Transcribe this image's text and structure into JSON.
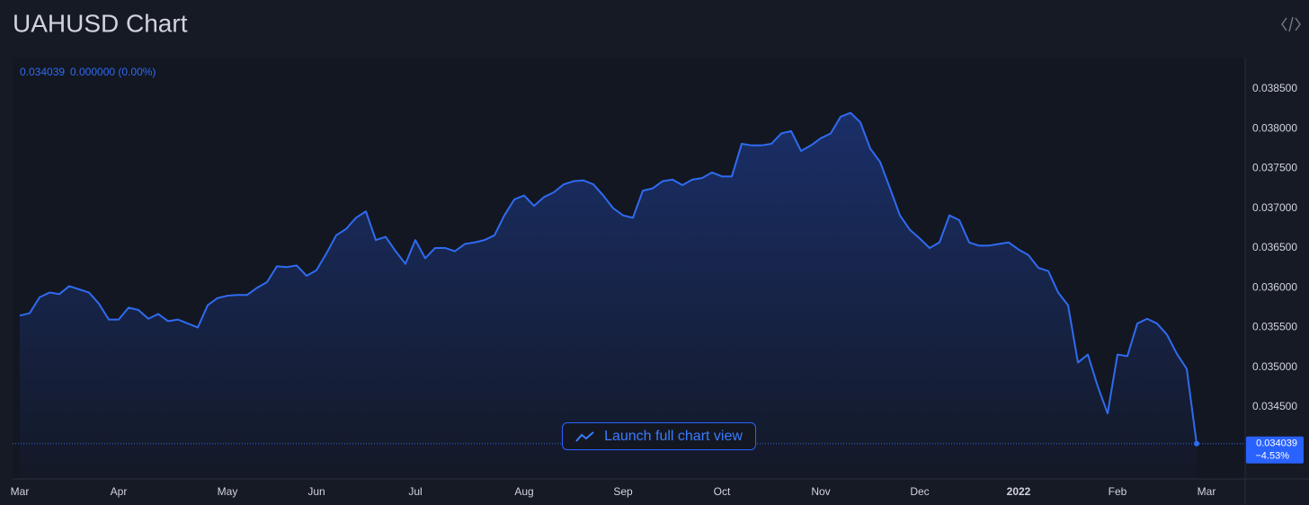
{
  "chart_data": {
    "type": "line",
    "title": "UAHUSD Chart",
    "legend": {
      "change": "0.000000 (0.00%)"
    },
    "price_change": "−4.53%",
    "button": "Launch full chart view",
    "categories": [
      "Mar",
      null,
      null,
      null,
      null,
      null,
      null,
      null,
      null,
      null,
      "Apr",
      null,
      null,
      null,
      null,
      null,
      null,
      null,
      null,
      null,
      null,
      "May",
      null,
      null,
      null,
      null,
      null,
      null,
      null,
      null,
      "Jun",
      null,
      null,
      null,
      null,
      null,
      null,
      null,
      null,
      null,
      "Jul",
      null,
      null,
      null,
      null,
      null,
      null,
      null,
      null,
      null,
      null,
      "Aug",
      null,
      null,
      null,
      null,
      null,
      null,
      null,
      null,
      null,
      "Sep",
      null,
      null,
      null,
      null,
      null,
      null,
      null,
      null,
      null,
      "Oct",
      null,
      null,
      null,
      null,
      null,
      null,
      null,
      null,
      null,
      "Nov",
      null,
      null,
      null,
      null,
      null,
      null,
      null,
      null,
      null,
      "Dec",
      null,
      null,
      null,
      null,
      null,
      null,
      null,
      null,
      null,
      "2022",
      null,
      null,
      null,
      null,
      null,
      null,
      null,
      null,
      null,
      "Feb",
      null,
      null,
      null,
      null,
      null,
      null,
      null,
      null,
      "Mar"
    ],
    "series": [
      {
        "name": "UAHUSD",
        "color": "#2f6bf0",
        "values": [
          0.03565,
          0.03568,
          0.03588,
          0.03594,
          0.03592,
          0.03602,
          0.03598,
          0.03594,
          0.0358,
          0.0356,
          0.0356,
          0.03575,
          0.03572,
          0.03561,
          0.03567,
          0.03558,
          0.0356,
          0.03555,
          0.0355,
          0.03578,
          0.03587,
          0.0359,
          0.03591,
          0.03591,
          0.036,
          0.03607,
          0.03627,
          0.03626,
          0.03628,
          0.03615,
          0.03622,
          0.03643,
          0.03666,
          0.03674,
          0.03688,
          0.03696,
          0.0366,
          0.03664,
          0.03646,
          0.0363,
          0.0366,
          0.03637,
          0.0365,
          0.0365,
          0.03646,
          0.03655,
          0.03657,
          0.0366,
          0.03666,
          0.03691,
          0.03711,
          0.03716,
          0.03703,
          0.03714,
          0.0372,
          0.0373,
          0.03734,
          0.03735,
          0.0373,
          0.03716,
          0.037,
          0.03691,
          0.03688,
          0.03722,
          0.03725,
          0.03734,
          0.03736,
          0.03729,
          0.03736,
          0.03738,
          0.03745,
          0.0374,
          0.0374,
          0.03781,
          0.03779,
          0.03779,
          0.03781,
          0.03794,
          0.03797,
          0.03772,
          0.03779,
          0.03788,
          0.03794,
          0.03815,
          0.0382,
          0.03808,
          0.03775,
          0.03758,
          0.03725,
          0.03691,
          0.03673,
          0.03662,
          0.0365,
          0.03657,
          0.03691,
          0.03685,
          0.03657,
          0.03653,
          0.03653,
          0.03655,
          0.03657,
          0.03648,
          0.03641,
          0.03625,
          0.03621,
          0.03594,
          0.03578,
          0.03506,
          0.03516,
          0.03476,
          0.03442,
          0.03516,
          0.03514,
          0.03555,
          0.03561,
          0.03555,
          0.03541,
          0.03517,
          0.03498,
          0.034039,
          null
        ]
      }
    ],
    "ylim": [
      0.033596,
      0.038895
    ],
    "yticks": [
      {
        "value": 0.0345,
        "label": "0.034500"
      },
      {
        "value": 0.035,
        "label": "0.035000"
      },
      {
        "value": 0.0355,
        "label": "0.035500"
      },
      {
        "value": 0.036,
        "label": "0.036000"
      },
      {
        "value": 0.0365,
        "label": "0.036500"
      },
      {
        "value": 0.037,
        "label": "0.037000"
      },
      {
        "value": 0.0375,
        "label": "0.037500"
      },
      {
        "value": 0.038,
        "label": "0.038000"
      },
      {
        "value": 0.0385,
        "label": "0.038500"
      }
    ],
    "grid": false
  }
}
